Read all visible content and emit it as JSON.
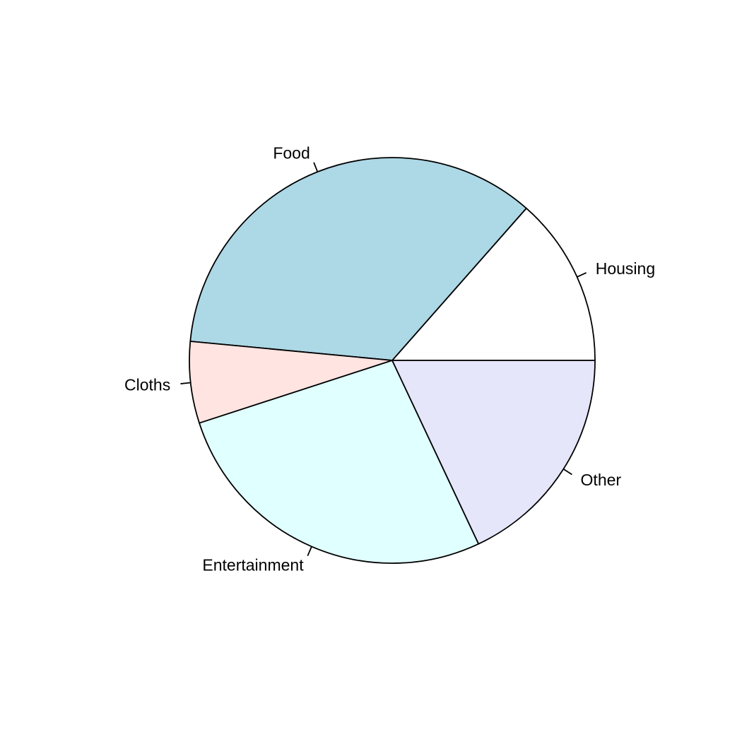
{
  "chart_data": {
    "type": "pie",
    "title": "",
    "direction": "counterclockwise",
    "start_angle_degrees": 0,
    "slices": [
      {
        "label": "Housing",
        "value": 13.5,
        "color": "#ffffff"
      },
      {
        "label": "Food",
        "value": 35.0,
        "color": "#add8e6"
      },
      {
        "label": "Cloths",
        "value": 6.5,
        "color": "#ffe4e1"
      },
      {
        "label": "Entertainment",
        "value": 27.0,
        "color": "#e0ffff"
      },
      {
        "label": "Other",
        "value": 18.0,
        "color": "#e6e6fa"
      }
    ]
  }
}
